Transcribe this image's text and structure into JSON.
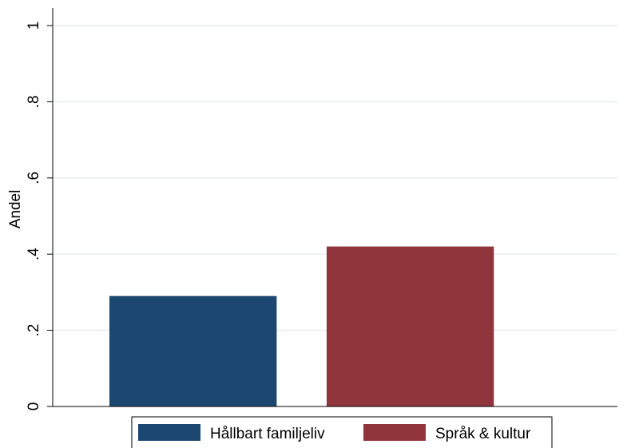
{
  "chart_data": {
    "type": "bar",
    "ylabel": "Andel",
    "ylim": [
      0,
      1
    ],
    "yticks": [
      {
        "value": 0,
        "label": "0"
      },
      {
        "value": 0.2,
        "label": ".2"
      },
      {
        "value": 0.4,
        "label": ".4"
      },
      {
        "value": 0.6,
        "label": ".6"
      },
      {
        "value": 0.8,
        "label": ".8"
      },
      {
        "value": 1,
        "label": "1"
      }
    ],
    "grid": true,
    "legend_position": "bottom",
    "series": [
      {
        "name": "Hållbart familjeliv",
        "value": 0.29,
        "color": "#1c4770"
      },
      {
        "name": "Språk & kultur",
        "value": 0.42,
        "color": "#90353b"
      }
    ]
  }
}
